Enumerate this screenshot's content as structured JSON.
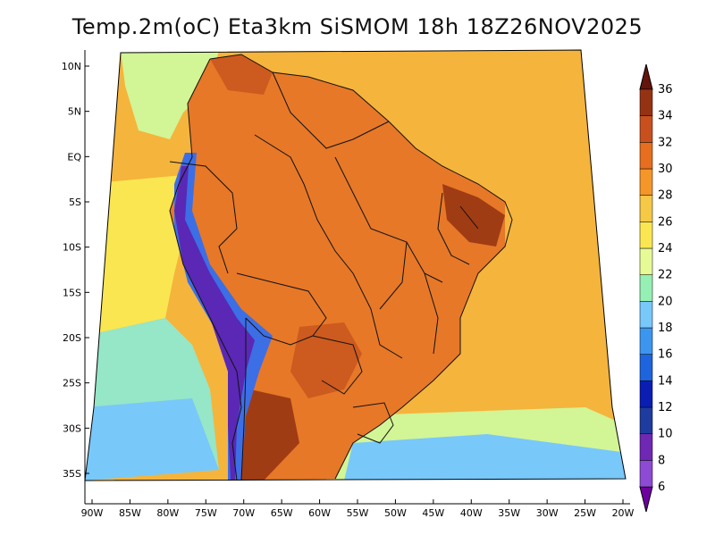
{
  "title": "Temp.2m(oC) Eta3km SiSMOM 18h 18Z26NOV2025",
  "map": {
    "lon_range": [
      -91,
      -20
    ],
    "lat_range": [
      -38,
      12
    ],
    "lat_ticks": [
      {
        "value": 10,
        "label": "10N"
      },
      {
        "value": 5,
        "label": "5N"
      },
      {
        "value": 0,
        "label": "EQ"
      },
      {
        "value": -5,
        "label": "5S"
      },
      {
        "value": -10,
        "label": "10S"
      },
      {
        "value": -15,
        "label": "15S"
      },
      {
        "value": -20,
        "label": "20S"
      },
      {
        "value": -25,
        "label": "25S"
      },
      {
        "value": -30,
        "label": "30S"
      },
      {
        "value": -35,
        "label": "35S"
      }
    ],
    "lon_ticks": [
      {
        "value": -90,
        "label": "90W"
      },
      {
        "value": -85,
        "label": "85W"
      },
      {
        "value": -80,
        "label": "80W"
      },
      {
        "value": -75,
        "label": "75W"
      },
      {
        "value": -70,
        "label": "70W"
      },
      {
        "value": -65,
        "label": "65W"
      },
      {
        "value": -60,
        "label": "60W"
      },
      {
        "value": -55,
        "label": "55W"
      },
      {
        "value": -50,
        "label": "50W"
      },
      {
        "value": -45,
        "label": "45W"
      },
      {
        "value": -40,
        "label": "40W"
      },
      {
        "value": -35,
        "label": "35W"
      },
      {
        "value": -30,
        "label": "30W"
      },
      {
        "value": -25,
        "label": "25W"
      },
      {
        "value": -20,
        "label": "20W"
      }
    ]
  },
  "colorbar": {
    "levels": [
      "6",
      "8",
      "10",
      "12",
      "14",
      "16",
      "18",
      "20",
      "22",
      "24",
      "26",
      "28",
      "30",
      "32",
      "34",
      "36"
    ],
    "colors": [
      "#a000c8",
      "#8c4bd2",
      "#6e28b4",
      "#1e3ca0",
      "#0a1eb4",
      "#1e64dc",
      "#3c96f0",
      "#78c8fa",
      "#96f0b4",
      "#e6fa96",
      "#fae650",
      "#f5c846",
      "#f59628",
      "#e66e1e",
      "#c8501e",
      "#963214",
      "#6e1e0a"
    ],
    "low_color": "#6e00a0",
    "high_color": "#64140a"
  },
  "colors": {
    "ocean_warm": "#f5b43c",
    "ocean_mid": "#fae650",
    "ocean_cool": "#d2f596",
    "ocean_cold": "#96e6c8",
    "ocean_south": "#78c8fa",
    "land_hot": "#e67828",
    "land_hotter": "#cd5a1e",
    "land_hottest": "#a03c14",
    "andes_cold": "#3c6ee6",
    "andes_colder": "#5a28b4",
    "border": "#111111"
  }
}
